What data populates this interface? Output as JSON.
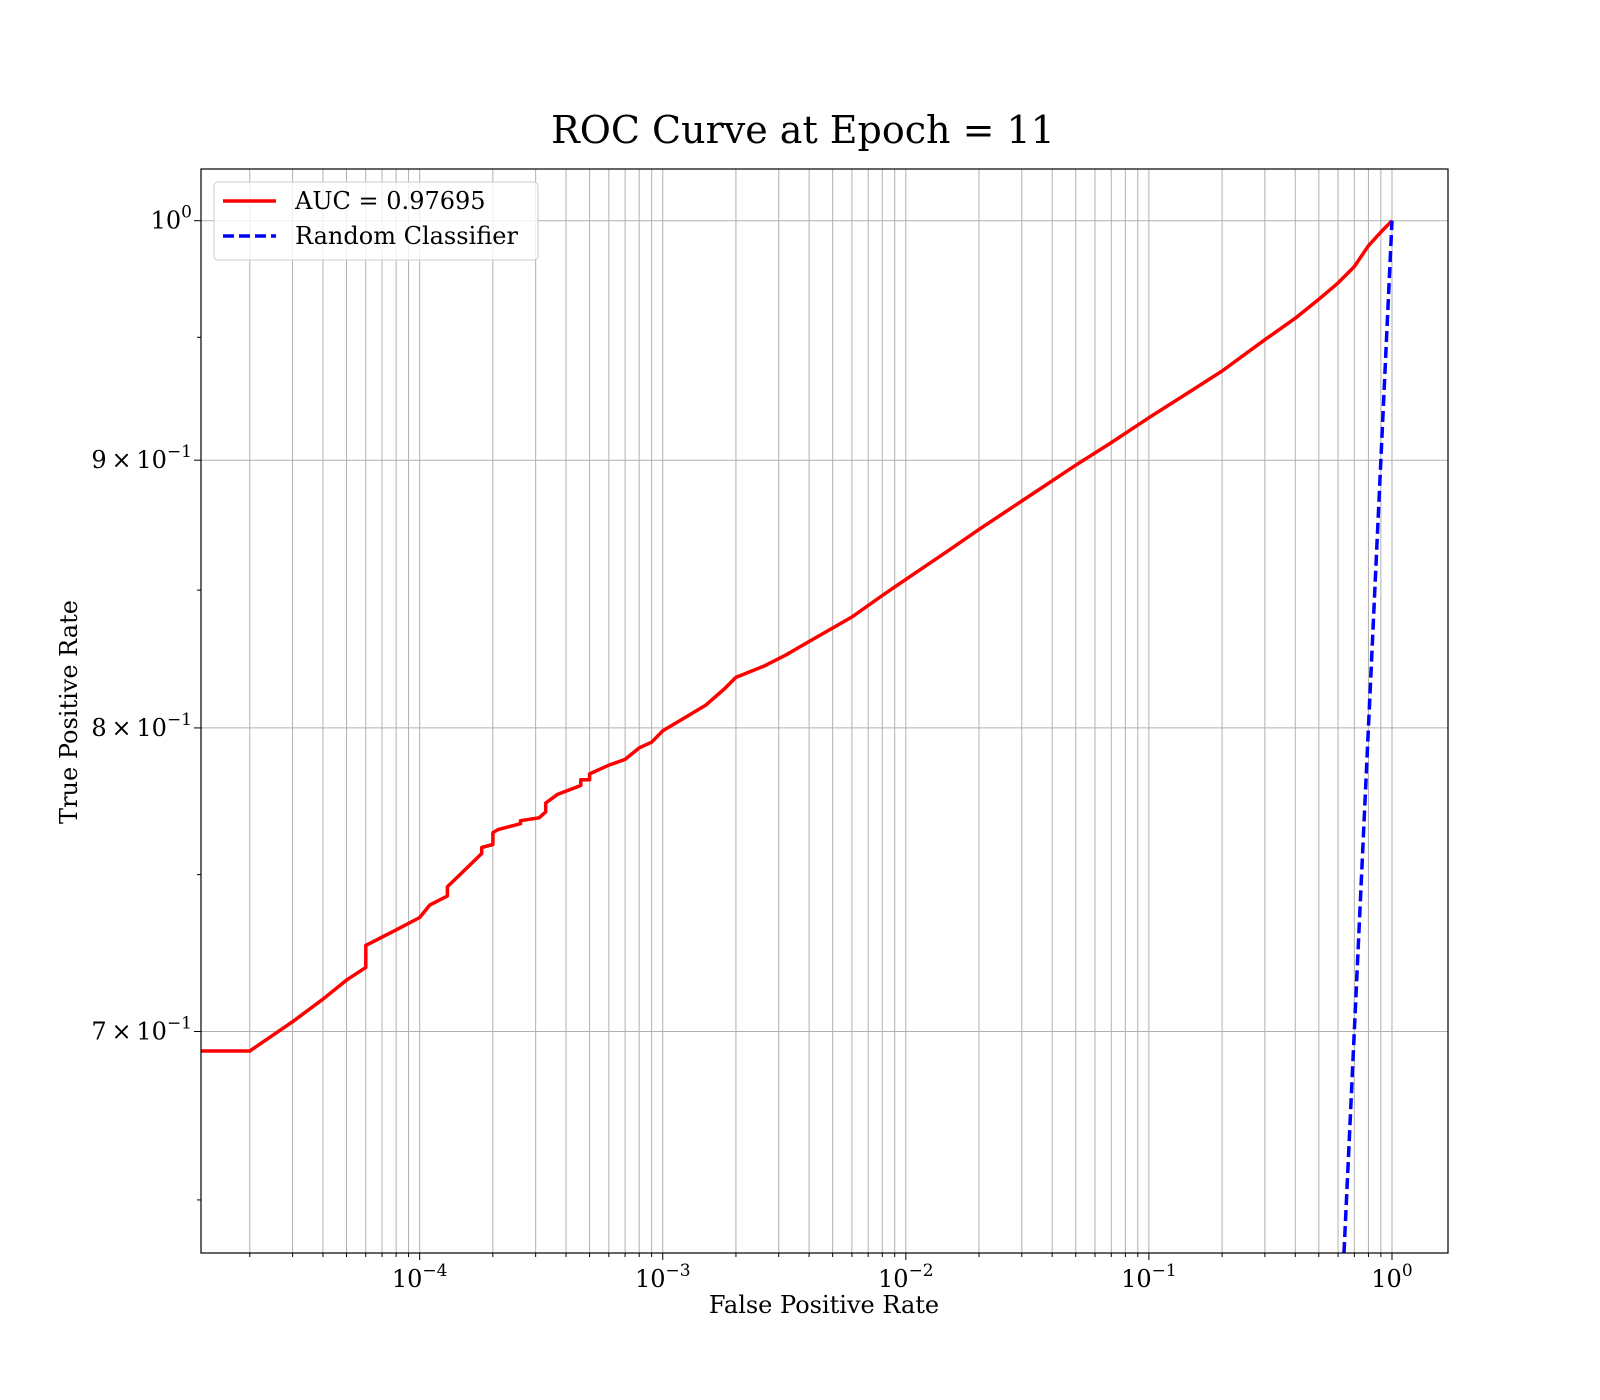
{
  "chart_data": {
    "type": "line",
    "title": "ROC Curve at Epoch = 11",
    "xlabel": "False Positive Rate",
    "ylabel": "True Positive Rate",
    "xscale": "log",
    "yscale": "log",
    "xlim": [
      1.26e-05,
      1.7
    ],
    "ylim": [
      0.635,
      1.023
    ],
    "grid": true,
    "legend_position": "top-left",
    "x_ticks": [
      {
        "value": 0.0001,
        "base": "10",
        "exp": "−4"
      },
      {
        "value": 0.001,
        "base": "10",
        "exp": "−3"
      },
      {
        "value": 0.01,
        "base": "10",
        "exp": "−2"
      },
      {
        "value": 0.1,
        "base": "10",
        "exp": "−1"
      },
      {
        "value": 1,
        "base": "10",
        "exp": "0"
      }
    ],
    "y_ticks": [
      {
        "value": 1.0,
        "mantissa": "",
        "base": "10",
        "exp": "0"
      },
      {
        "value": 0.9,
        "mantissa": "9 × ",
        "base": "10",
        "exp": "−1"
      },
      {
        "value": 0.8,
        "mantissa": "8 × ",
        "base": "10",
        "exp": "−1"
      },
      {
        "value": 0.7,
        "mantissa": "7 × ",
        "base": "10",
        "exp": "−1"
      }
    ],
    "series": [
      {
        "name": "AUC = 0.97695",
        "color": "#ff0000",
        "style": "solid",
        "points": [
          [
            1.26e-05,
            0.694
          ],
          [
            2e-05,
            0.694
          ],
          [
            3e-05,
            0.703
          ],
          [
            4e-05,
            0.71
          ],
          [
            5e-05,
            0.716
          ],
          [
            6e-05,
            0.72
          ],
          [
            6e-05,
            0.727
          ],
          [
            8e-05,
            0.732
          ],
          [
            0.0001,
            0.736
          ],
          [
            0.00011,
            0.74
          ],
          [
            0.00013,
            0.743
          ],
          [
            0.00013,
            0.746
          ],
          [
            0.00016,
            0.753
          ],
          [
            0.00018,
            0.757
          ],
          [
            0.00018,
            0.759
          ],
          [
            0.0002,
            0.76
          ],
          [
            0.0002,
            0.764
          ],
          [
            0.00021,
            0.765
          ],
          [
            0.00026,
            0.767
          ],
          [
            0.00026,
            0.768
          ],
          [
            0.00031,
            0.769
          ],
          [
            0.00033,
            0.771
          ],
          [
            0.00033,
            0.774
          ],
          [
            0.00037,
            0.777
          ],
          [
            0.00046,
            0.78
          ],
          [
            0.00046,
            0.782
          ],
          [
            0.0005,
            0.782
          ],
          [
            0.0005,
            0.784
          ],
          [
            0.0006,
            0.787
          ],
          [
            0.0007,
            0.789
          ],
          [
            0.0008,
            0.793
          ],
          [
            0.0009,
            0.795
          ],
          [
            0.001,
            0.799
          ],
          [
            0.0012,
            0.803
          ],
          [
            0.0015,
            0.808
          ],
          [
            0.0018,
            0.814
          ],
          [
            0.002,
            0.818
          ],
          [
            0.0026,
            0.822
          ],
          [
            0.0032,
            0.826
          ],
          [
            0.004,
            0.831
          ],
          [
            0.006,
            0.84
          ],
          [
            0.008,
            0.848
          ],
          [
            0.01,
            0.854
          ],
          [
            0.015,
            0.865
          ],
          [
            0.02,
            0.873
          ],
          [
            0.03,
            0.884
          ],
          [
            0.05,
            0.898
          ],
          [
            0.07,
            0.907
          ],
          [
            0.1,
            0.917
          ],
          [
            0.15,
            0.928
          ],
          [
            0.2,
            0.936
          ],
          [
            0.3,
            0.949
          ],
          [
            0.4,
            0.958
          ],
          [
            0.5,
            0.966
          ],
          [
            0.6,
            0.973
          ],
          [
            0.7,
            0.98
          ],
          [
            0.8,
            0.989
          ],
          [
            0.9,
            0.995
          ],
          [
            1.0,
            1.0
          ]
        ]
      },
      {
        "name": "Random Classifier",
        "color": "#0000ff",
        "style": "dashed",
        "points": [
          [
            0.635,
            0.635
          ],
          [
            1.0,
            1.0
          ]
        ]
      }
    ]
  }
}
